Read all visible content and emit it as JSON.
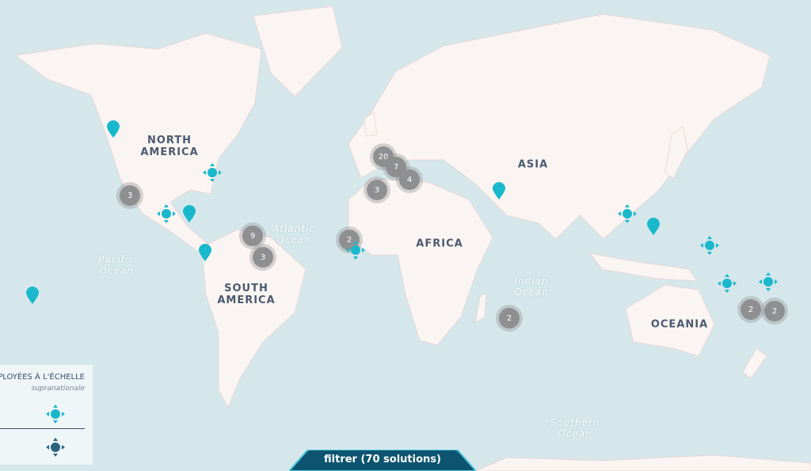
{
  "colors": {
    "ocean": "#d5e7eb",
    "land": "#faf5f2",
    "marker": "#1ab8cc",
    "marker_dark": "#2a6580",
    "cluster": "#8e8f91",
    "filter_bg": "#0d5470"
  },
  "continents": [
    {
      "label": "NORTH\nAMERICA",
      "name": "north-america"
    },
    {
      "label": "SOUTH\nAMERICA",
      "name": "south-america"
    },
    {
      "label": "AFRICA",
      "name": "africa"
    },
    {
      "label": "ASIA",
      "name": "asia"
    },
    {
      "label": "OCEANIA",
      "name": "oceania"
    }
  ],
  "oceans": [
    {
      "label": "Atlantic\nOcean"
    },
    {
      "label": "Pacific\nOcean"
    },
    {
      "label": "Indian\nOcean"
    },
    {
      "label": "Southern\nOcean"
    }
  ],
  "clusters": [
    "3",
    "20",
    "7",
    "4",
    "3",
    "9",
    "3",
    "2",
    "2",
    "2",
    "2"
  ],
  "markers": {
    "pin_icon": "map-pin-icon",
    "diamond_icon": "four-arrow-diamond-icon"
  },
  "legend": {
    "title": "PLOYÉES À L'ÉCHELLE",
    "subtitle": "supranationale"
  },
  "filter": {
    "label": "filtrer (70 solutions)"
  }
}
